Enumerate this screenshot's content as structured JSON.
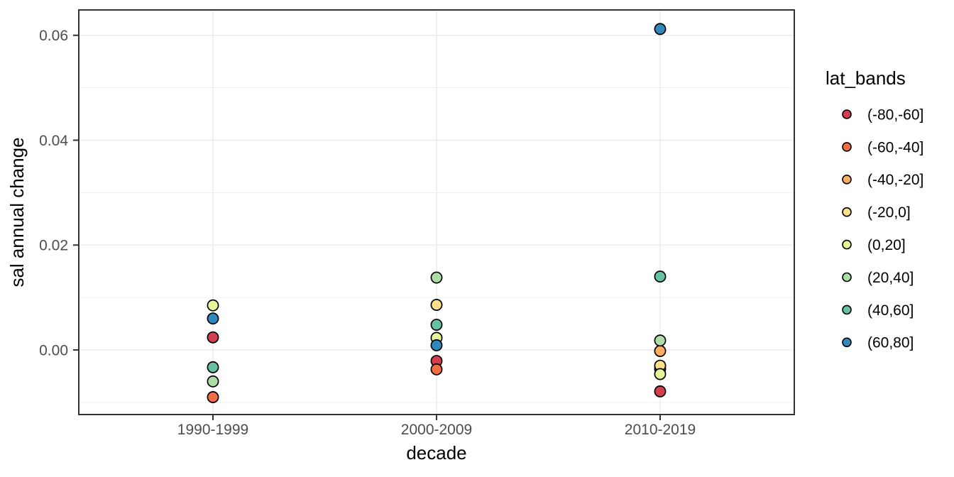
{
  "chart_data": {
    "type": "scatter",
    "title": "",
    "xlabel": "decade",
    "ylabel": "sal annual change",
    "categories": [
      "1990-1999",
      "2000-2009",
      "2010-2019"
    ],
    "y_axis": {
      "tick_values": [
        0.0,
        0.02,
        0.04,
        0.06
      ],
      "tick_labels": [
        "0.00",
        "0.02",
        "0.04",
        "0.06"
      ],
      "minor_gridlines": [
        -0.01,
        0.01,
        0.03,
        0.05
      ],
      "range": [
        -0.0123,
        0.0648
      ]
    },
    "legend": {
      "title": "lat_bands",
      "position": "right"
    },
    "series": [
      {
        "name": "(-80,-60]",
        "color": "#D53E4F",
        "values": [
          0.0024,
          -0.0021,
          -0.0079
        ]
      },
      {
        "name": "(-60,-40]",
        "color": "#F46D43",
        "values": [
          -0.009,
          -0.0037,
          -0.0036
        ]
      },
      {
        "name": "(-40,-20]",
        "color": "#FDAE61",
        "values": [
          null,
          null,
          -0.0002
        ]
      },
      {
        "name": "(-20,0]",
        "color": "#FEE08B",
        "values": [
          null,
          0.0086,
          -0.003
        ]
      },
      {
        "name": "(0,20]",
        "color": "#E6F598",
        "values": [
          0.0085,
          0.0023,
          -0.0046
        ]
      },
      {
        "name": "(20,40]",
        "color": "#ABDDA4",
        "values": [
          -0.006,
          0.0138,
          0.0018
        ]
      },
      {
        "name": "(40,60]",
        "color": "#66C2A5",
        "values": [
          -0.0033,
          0.0048,
          0.014
        ]
      },
      {
        "name": "(60,80]",
        "color": "#3288BD",
        "values": [
          0.006,
          0.0009,
          0.0612
        ]
      }
    ],
    "grid": true
  },
  "theme": {
    "background": "#FFFFFF",
    "panel_background": "#FFFFFF",
    "grid_color": "#EBEBEB",
    "panel_border_color": "#333333",
    "tick_color": "#333333",
    "tick_label_color": "#4D4D4D",
    "title_color": "#000000",
    "point_stroke": "#000000"
  }
}
